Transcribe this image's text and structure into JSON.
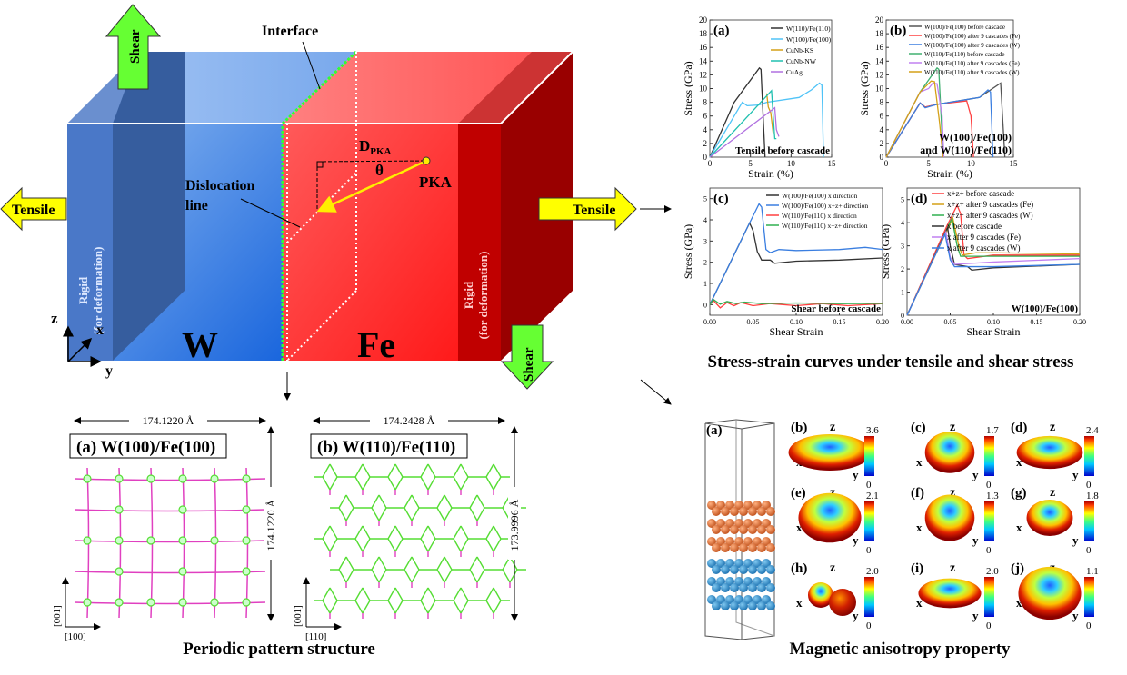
{
  "schematic": {
    "interface_label": "Interface",
    "shear_label": "Shear",
    "tensile_label": "Tensile",
    "rigid_label_1": "Rigid",
    "rigid_label_2": "(for deformation)",
    "dislocation_label_1": "Dislocation",
    "dislocation_label_2": "line",
    "dpka_main": "D",
    "dpka_sub": "PKA",
    "theta": "θ",
    "pka_label": "PKA",
    "w_label": "W",
    "fe_label": "Fe",
    "axis_z": "z",
    "axis_x": "x",
    "axis_y": "y",
    "colors": {
      "w_blue": "#3a7ee0",
      "fe_red": "#ff3030",
      "rigid_dark_red": "#990000",
      "arrow_green": "#66ff33",
      "arrow_yellow": "#ffff00",
      "interface_green": "#33ff33"
    }
  },
  "patterns": {
    "panel_a": {
      "title": "(a) W(100)/Fe(100)",
      "width_label": "174.1220 Å",
      "height_label": "174.1220 Å",
      "axis_vertical": "[001]",
      "axis_horizontal": "[100]"
    },
    "panel_b": {
      "title": "(b) W(110)/Fe(110)",
      "width_label": "174.2428 Å",
      "height_label": "173.9996 Å",
      "axis_vertical": "[001]",
      "axis_horizontal": "[110]"
    },
    "caption": "Periodic pattern structure",
    "colors": {
      "line_magenta": "#e040c0",
      "line_green": "#55dd33"
    }
  },
  "stress_caption": "Stress-strain curves under tensile and shear stress",
  "chart_data": [
    {
      "type": "line",
      "panel": "(a)",
      "annotation": "Tensile before cascade",
      "xlabel": "Strain (%)",
      "ylabel": "Stress (GPa)",
      "xlim": [
        0,
        15
      ],
      "ylim": [
        0,
        20
      ],
      "xticks": [
        0,
        5,
        10,
        15
      ],
      "yticks": [
        0,
        2,
        4,
        6,
        8,
        10,
        12,
        14,
        16,
        18,
        20
      ],
      "legend": "top-right",
      "series": [
        {
          "name": "W(110)/Fe(110)",
          "color": "#333333",
          "points": [
            [
              0,
              0
            ],
            [
              3,
              8
            ],
            [
              6.1,
              13
            ],
            [
              6.3,
              12.8
            ],
            [
              6.6,
              5
            ],
            [
              6.8,
              0
            ]
          ]
        },
        {
          "name": "W(100)/Fe(100)",
          "color": "#4fc3f7",
          "points": [
            [
              0,
              0
            ],
            [
              4,
              8
            ],
            [
              4.6,
              7.5
            ],
            [
              6,
              7.6
            ],
            [
              7,
              8
            ],
            [
              11,
              8.7
            ],
            [
              12.5,
              9.8
            ],
            [
              13.5,
              10.8
            ],
            [
              13.8,
              10.5
            ],
            [
              14,
              0
            ]
          ]
        },
        {
          "name": "CuNb-KS",
          "color": "#d4a017",
          "points": [
            [
              7,
              9.3
            ],
            [
              7.2,
              7.3
            ],
            [
              7.5,
              6.5
            ],
            [
              7.8,
              3.5
            ]
          ]
        },
        {
          "name": "CuNb-NW",
          "color": "#20c0b0",
          "points": [
            [
              0,
              0
            ],
            [
              7.6,
              9.7
            ],
            [
              7.8,
              6
            ],
            [
              8,
              2.7
            ],
            [
              8.2,
              2.7
            ]
          ]
        },
        {
          "name": "CuAg",
          "color": "#b070e0",
          "points": [
            [
              0,
              0
            ],
            [
              8,
              7.2
            ],
            [
              8.2,
              4
            ],
            [
              8.5,
              3
            ]
          ]
        }
      ]
    },
    {
      "type": "line",
      "panel": "(b)",
      "annotation": "W(100)/Fe(100)",
      "annotation2": "and W(110)/Fe(110)",
      "xlabel": "Strain (%)",
      "ylabel": "Stress (GPa)",
      "xlim": [
        0,
        15
      ],
      "ylim": [
        0,
        20
      ],
      "xticks": [
        0,
        5,
        10,
        15
      ],
      "yticks": [
        0,
        2,
        4,
        6,
        8,
        10,
        12,
        14,
        16,
        18,
        20
      ],
      "legend": "top-right",
      "series": [
        {
          "name": "W(100)/Fe(100) before cascade",
          "color": "#555555",
          "points": [
            [
              0,
              0
            ],
            [
              4,
              7.9
            ],
            [
              4.6,
              7.3
            ],
            [
              6,
              7.7
            ],
            [
              10,
              8.5
            ],
            [
              11,
              8.7
            ],
            [
              13.5,
              10.8
            ],
            [
              14,
              0
            ]
          ]
        },
        {
          "name": "W(100)/Fe(100) after 9 cascades (Fe)",
          "color": "#ff4040",
          "points": [
            [
              0,
              0
            ],
            [
              4,
              7.9
            ],
            [
              4.6,
              7.3
            ],
            [
              6,
              7.7
            ],
            [
              9.5,
              8.2
            ],
            [
              10,
              6
            ],
            [
              10.3,
              0
            ]
          ]
        },
        {
          "name": "W(100)/Fe(100) after 9 cascades (W)",
          "color": "#3a7ee0",
          "points": [
            [
              0,
              0
            ],
            [
              4,
              7.9
            ],
            [
              4.6,
              7.2
            ],
            [
              6,
              7.7
            ],
            [
              11,
              8.7
            ],
            [
              12,
              9.8
            ],
            [
              12.3,
              9.5
            ],
            [
              12.6,
              0
            ]
          ]
        },
        {
          "name": "W(110)/Fe(110) before cascade",
          "color": "#40b070",
          "points": [
            [
              0,
              0
            ],
            [
              4,
              9.5
            ],
            [
              6,
              13
            ],
            [
              6.2,
              12.8
            ],
            [
              6.6,
              3
            ],
            [
              6.8,
              0
            ]
          ]
        },
        {
          "name": "W(110)/Fe(110) after 9 cascades (Fe)",
          "color": "#c080f0",
          "points": [
            [
              0,
              0
            ],
            [
              4,
              9.5
            ],
            [
              5,
              10
            ],
            [
              5.5,
              10.8
            ],
            [
              6,
              10.7
            ],
            [
              6.6,
              6
            ],
            [
              6.8,
              0
            ]
          ]
        },
        {
          "name": "W(110)/Fe(110) after 9 cascades (W)",
          "color": "#d4a017",
          "points": [
            [
              0,
              0
            ],
            [
              4,
              9.5
            ],
            [
              5.3,
              11.1
            ],
            [
              5.7,
              11
            ],
            [
              6.3,
              5
            ],
            [
              6.7,
              0
            ]
          ]
        }
      ]
    },
    {
      "type": "line",
      "panel": "(c)",
      "annotation": "Shear before cascade",
      "xlabel": "Shear Strain",
      "ylabel": "Stress (GPa)",
      "xlim": [
        0,
        0.2
      ],
      "ylim": [
        -0.5,
        5.5
      ],
      "xticks": [
        0.0,
        0.05,
        0.1,
        0.15,
        0.2
      ],
      "xtick_labels": [
        "0.00",
        "0.05",
        "0.10",
        "0.15",
        "0.20"
      ],
      "yticks": [
        0,
        1,
        2,
        3,
        4,
        5
      ],
      "legend": "top-right",
      "series": [
        {
          "name": "W(100)/Fe(100) x direction",
          "color": "#333333",
          "points": [
            [
              0,
              0
            ],
            [
              0.046,
              3.85
            ],
            [
              0.05,
              3.5
            ],
            [
              0.055,
              2.5
            ],
            [
              0.06,
              2.1
            ],
            [
              0.07,
              2.1
            ],
            [
              0.075,
              1.95
            ],
            [
              0.1,
              2.05
            ],
            [
              0.15,
              2.1
            ],
            [
              0.2,
              2.2
            ]
          ]
        },
        {
          "name": "W(100)/Fe(100) x+z+ direction",
          "color": "#3a7ee0",
          "points": [
            [
              0,
              0
            ],
            [
              0.046,
              3.85
            ],
            [
              0.057,
              4.75
            ],
            [
              0.06,
              4.6
            ],
            [
              0.065,
              2.6
            ],
            [
              0.07,
              2.45
            ],
            [
              0.08,
              2.6
            ],
            [
              0.1,
              2.55
            ],
            [
              0.15,
              2.6
            ],
            [
              0.18,
              2.7
            ],
            [
              0.2,
              2.6
            ]
          ]
        },
        {
          "name": "W(110)/Fe(110) x direction",
          "color": "#ff4040",
          "points": [
            [
              0,
              0
            ],
            [
              0.004,
              0.2
            ],
            [
              0.012,
              -0.15
            ],
            [
              0.02,
              0.1
            ],
            [
              0.028,
              -0.05
            ],
            [
              0.036,
              0.1
            ],
            [
              0.05,
              -0.05
            ],
            [
              0.07,
              0.05
            ],
            [
              0.1,
              -0.05
            ],
            [
              0.13,
              0.05
            ],
            [
              0.16,
              -0.05
            ],
            [
              0.2,
              0.05
            ]
          ]
        },
        {
          "name": "W(110)/Fe(110) x+z+ direction",
          "color": "#30b050",
          "points": [
            [
              0,
              0
            ],
            [
              0.004,
              0.25
            ],
            [
              0.012,
              0.02
            ],
            [
              0.02,
              0.15
            ],
            [
              0.03,
              0.05
            ],
            [
              0.04,
              0.12
            ],
            [
              0.06,
              0.05
            ],
            [
              0.1,
              0.08
            ],
            [
              0.15,
              0.05
            ],
            [
              0.2,
              0.06
            ]
          ]
        }
      ]
    },
    {
      "type": "line",
      "panel": "(d)",
      "annotation": "W(100)/Fe(100)",
      "xlabel": "Shear Strain",
      "ylabel": "Stress (GPa)",
      "xlim": [
        0,
        0.2
      ],
      "ylim": [
        0,
        5.5
      ],
      "xticks": [
        0.0,
        0.05,
        0.1,
        0.15,
        0.2
      ],
      "xtick_labels": [
        "0.00",
        "0.05",
        "0.10",
        "0.15",
        "0.20"
      ],
      "yticks": [
        0,
        1,
        2,
        3,
        4,
        5
      ],
      "legend": "top-right",
      "series": [
        {
          "name": "x+z+ before cascade",
          "color": "#ff4040",
          "points": [
            [
              0,
              0
            ],
            [
              0.046,
              3.85
            ],
            [
              0.058,
              4.75
            ],
            [
              0.062,
              4.4
            ],
            [
              0.066,
              2.6
            ],
            [
              0.07,
              2.45
            ],
            [
              0.1,
              2.6
            ],
            [
              0.2,
              2.6
            ]
          ]
        },
        {
          "name": "x+z+ after 9 cascades (Fe)",
          "color": "#d4a017",
          "points": [
            [
              0,
              0
            ],
            [
              0.053,
              4.2
            ],
            [
              0.06,
              3
            ],
            [
              0.064,
              2.6
            ],
            [
              0.08,
              2.7
            ],
            [
              0.1,
              2.7
            ],
            [
              0.2,
              2.65
            ]
          ]
        },
        {
          "name": "x+z+ after 9 cascades (W)",
          "color": "#30b050",
          "points": [
            [
              0,
              0
            ],
            [
              0.052,
              4.2
            ],
            [
              0.058,
              3
            ],
            [
              0.062,
              2.55
            ],
            [
              0.1,
              2.55
            ],
            [
              0.2,
              2.55
            ]
          ]
        },
        {
          "name": "x before cascade",
          "color": "#333333",
          "points": [
            [
              0,
              0
            ],
            [
              0.047,
              3.8
            ],
            [
              0.05,
              3
            ],
            [
              0.055,
              2.2
            ],
            [
              0.07,
              2.1
            ],
            [
              0.075,
              1.95
            ],
            [
              0.1,
              2.05
            ],
            [
              0.2,
              2.2
            ]
          ]
        },
        {
          "name": "x after 9 cascades (Fe)",
          "color": "#c080f0",
          "points": [
            [
              0,
              0
            ],
            [
              0.045,
              3.6
            ],
            [
              0.05,
              2.5
            ],
            [
              0.055,
              2.2
            ],
            [
              0.1,
              2.3
            ],
            [
              0.2,
              2.45
            ]
          ]
        },
        {
          "name": "x after 9 cascades (W)",
          "color": "#3a7ee0",
          "points": [
            [
              0,
              0
            ],
            [
              0.044,
              3.5
            ],
            [
              0.05,
              2.4
            ],
            [
              0.055,
              2.1
            ],
            [
              0.1,
              2.1
            ],
            [
              0.2,
              2.2
            ]
          ]
        }
      ]
    }
  ],
  "magnetic": {
    "caption": "Magnetic anisotropy property",
    "structure_label": "(a)",
    "atom_colors": {
      "fe": "#e06a30",
      "w": "#2a8fd0"
    },
    "axis_z": "z",
    "axis_x": "x",
    "axis_y": "y",
    "panels": [
      {
        "label": "(b)",
        "max": "3.6",
        "min": "0"
      },
      {
        "label": "(c)",
        "max": "1.7",
        "min": "0"
      },
      {
        "label": "(d)",
        "max": "2.4",
        "min": "0"
      },
      {
        "label": "(e)",
        "max": "2.1",
        "min": "0"
      },
      {
        "label": "(f)",
        "max": "1.3",
        "min": "0"
      },
      {
        "label": "(g)",
        "max": "1.8",
        "min": "0"
      },
      {
        "label": "(h)",
        "max": "2.0",
        "min": "0"
      },
      {
        "label": "(i)",
        "max": "2.0",
        "min": "0"
      },
      {
        "label": "(j)",
        "max": "1.1",
        "min": "0"
      }
    ]
  }
}
